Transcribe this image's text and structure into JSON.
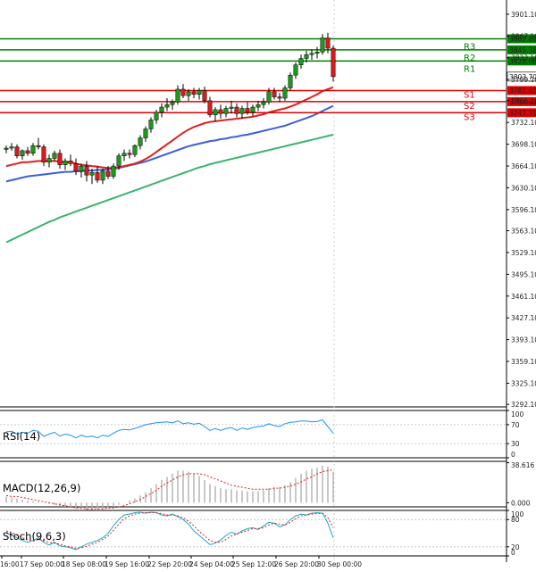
{
  "chart_data": {
    "type": "candlestick",
    "y_ticks": [
      3901.1,
      3867.1,
      3833.1,
      3799.1,
      3766.1,
      3732.1,
      3698.1,
      3664.1,
      3630.1,
      3596.1,
      3563.1,
      3529.1,
      3495.1,
      3461.1,
      3427.1,
      3393.1,
      3359.1,
      3325.1,
      3292.1
    ],
    "ylim": [
      3288.1,
      3912.1
    ],
    "current_price": "3803.70",
    "x_ticks": [
      "16:00",
      "17 Sep 00:00",
      "18 Sep 08:00",
      "19 Sep 16:00",
      "22 Sep 20:00",
      "24 Sep 04:00",
      "25 Sep 12:00",
      "26 Sep 20:00",
      "30 Sep 00:00"
    ],
    "levels": [
      {
        "name": "R3",
        "value": 3862.69,
        "label": "3862.69",
        "color": "#008000"
      },
      {
        "name": "R2",
        "value": 3845.38,
        "label": "3845.38",
        "color": "#008000"
      },
      {
        "name": "R1",
        "value": 3828.08,
        "label": "3828.08",
        "color": "#008000"
      },
      {
        "name": "S1",
        "value": 3781.92,
        "label": "3781.92",
        "color": "#e00000"
      },
      {
        "name": "S2",
        "value": 3764.62,
        "label": "3764.62",
        "color": "#e00000"
      },
      {
        "name": "S3",
        "value": 3747.31,
        "label": "3747.31",
        "color": "#e00000"
      }
    ],
    "candles": [
      [
        3690,
        3696,
        3684,
        3692
      ],
      [
        3692,
        3700,
        3688,
        3694
      ],
      [
        3694,
        3698,
        3676,
        3680
      ],
      [
        3680,
        3690,
        3674,
        3688
      ],
      [
        3688,
        3694,
        3680,
        3684
      ],
      [
        3684,
        3700,
        3680,
        3696
      ],
      [
        3696,
        3708,
        3690,
        3694
      ],
      [
        3694,
        3698,
        3664,
        3670
      ],
      [
        3670,
        3682,
        3662,
        3676
      ],
      [
        3676,
        3688,
        3672,
        3684
      ],
      [
        3684,
        3690,
        3660,
        3666
      ],
      [
        3666,
        3676,
        3658,
        3672
      ],
      [
        3672,
        3682,
        3664,
        3668
      ],
      [
        3668,
        3676,
        3650,
        3656
      ],
      [
        3656,
        3668,
        3646,
        3664
      ],
      [
        3664,
        3672,
        3640,
        3650
      ],
      [
        3650,
        3660,
        3636,
        3654
      ],
      [
        3654,
        3664,
        3638,
        3642
      ],
      [
        3642,
        3660,
        3636,
        3656
      ],
      [
        3656,
        3664,
        3644,
        3648
      ],
      [
        3648,
        3668,
        3644,
        3664
      ],
      [
        3664,
        3684,
        3658,
        3680
      ],
      [
        3680,
        3690,
        3672,
        3684
      ],
      [
        3684,
        3690,
        3676,
        3682
      ],
      [
        3682,
        3698,
        3678,
        3696
      ],
      [
        3696,
        3712,
        3690,
        3708
      ],
      [
        3708,
        3726,
        3702,
        3722
      ],
      [
        3722,
        3740,
        3716,
        3736
      ],
      [
        3736,
        3752,
        3730,
        3748
      ],
      [
        3748,
        3762,
        3740,
        3756
      ],
      [
        3756,
        3770,
        3750,
        3760
      ],
      [
        3760,
        3768,
        3752,
        3764
      ],
      [
        3764,
        3790,
        3760,
        3784
      ],
      [
        3784,
        3792,
        3770,
        3774
      ],
      [
        3774,
        3784,
        3766,
        3780
      ],
      [
        3780,
        3786,
        3770,
        3776
      ],
      [
        3776,
        3786,
        3768,
        3782
      ],
      [
        3782,
        3788,
        3762,
        3766
      ],
      [
        3766,
        3772,
        3740,
        3744
      ],
      [
        3744,
        3756,
        3734,
        3752
      ],
      [
        3752,
        3760,
        3738,
        3746
      ],
      [
        3746,
        3758,
        3740,
        3754
      ],
      [
        3754,
        3766,
        3746,
        3756
      ],
      [
        3756,
        3762,
        3740,
        3746
      ],
      [
        3746,
        3758,
        3738,
        3754
      ],
      [
        3754,
        3764,
        3744,
        3748
      ],
      [
        3748,
        3760,
        3742,
        3756
      ],
      [
        3756,
        3766,
        3750,
        3760
      ],
      [
        3760,
        3770,
        3754,
        3764
      ],
      [
        3764,
        3786,
        3760,
        3780
      ],
      [
        3780,
        3786,
        3768,
        3772
      ],
      [
        3772,
        3778,
        3764,
        3770
      ],
      [
        3770,
        3790,
        3766,
        3786
      ],
      [
        3786,
        3810,
        3782,
        3806
      ],
      [
        3806,
        3826,
        3800,
        3822
      ],
      [
        3822,
        3838,
        3816,
        3832
      ],
      [
        3832,
        3844,
        3826,
        3838
      ],
      [
        3838,
        3846,
        3830,
        3840
      ],
      [
        3840,
        3850,
        3832,
        3842
      ],
      [
        3842,
        3870,
        3838,
        3864
      ],
      [
        3864,
        3872,
        3840,
        3848
      ],
      [
        3848,
        3852,
        3796,
        3803.7
      ]
    ],
    "ma_fast": [
      3664,
      3666,
      3668,
      3670,
      3670,
      3671,
      3672,
      3672,
      3672,
      3672,
      3671,
      3670,
      3670,
      3668,
      3666,
      3665,
      3664,
      3663,
      3662,
      3661,
      3661,
      3662,
      3664,
      3666,
      3668,
      3671,
      3675,
      3680,
      3686,
      3692,
      3698,
      3704,
      3710,
      3716,
      3721,
      3725,
      3728,
      3731,
      3733,
      3734,
      3735,
      3736,
      3737,
      3738,
      3739,
      3740,
      3741,
      3743,
      3745,
      3748,
      3750,
      3752,
      3754,
      3757,
      3760,
      3764,
      3768,
      3772,
      3776,
      3781,
      3784,
      3787
    ],
    "ma_mid": [
      3640,
      3642,
      3644,
      3646,
      3648,
      3649,
      3650,
      3651,
      3652,
      3653,
      3654,
      3655,
      3655,
      3656,
      3656,
      3657,
      3657,
      3658,
      3658,
      3659,
      3660,
      3661,
      3663,
      3665,
      3667,
      3669,
      3671,
      3674,
      3677,
      3680,
      3683,
      3686,
      3689,
      3692,
      3695,
      3697,
      3699,
      3701,
      3703,
      3704,
      3706,
      3707,
      3709,
      3710,
      3712,
      3713,
      3715,
      3717,
      3719,
      3721,
      3723,
      3725,
      3727,
      3730,
      3733,
      3736,
      3739,
      3742,
      3746,
      3750,
      3754,
      3758
    ],
    "ma_slow": [
      3545,
      3549,
      3553,
      3557,
      3561,
      3565,
      3569,
      3573,
      3577,
      3580,
      3584,
      3587,
      3590,
      3593,
      3596,
      3599,
      3602,
      3605,
      3608,
      3611,
      3614,
      3617,
      3620,
      3623,
      3626,
      3629,
      3632,
      3635,
      3638,
      3641,
      3644,
      3647,
      3650,
      3653,
      3656,
      3659,
      3662,
      3664,
      3667,
      3669,
      3671,
      3673,
      3675,
      3677,
      3679,
      3681,
      3683,
      3685,
      3687,
      3689,
      3691,
      3693,
      3695,
      3697,
      3699,
      3701,
      3703,
      3705,
      3707,
      3709,
      3711,
      3713
    ],
    "rsi": {
      "title": "RSI(14)",
      "ticks": [
        "100",
        "70",
        "30",
        "0"
      ],
      "ylim": [
        0,
        100
      ],
      "values": [
        55,
        56,
        50,
        54,
        52,
        58,
        56,
        45,
        50,
        54,
        46,
        50,
        48,
        42,
        48,
        44,
        46,
        42,
        48,
        45,
        52,
        58,
        60,
        59,
        62,
        66,
        70,
        72,
        74,
        75,
        76,
        74,
        78,
        72,
        74,
        71,
        73,
        66,
        58,
        62,
        58,
        62,
        64,
        58,
        63,
        60,
        64,
        66,
        67,
        72,
        68,
        66,
        72,
        75,
        76,
        78,
        78,
        76,
        77,
        80,
        66,
        52
      ]
    },
    "macd": {
      "title": "MACD(12,26,9)",
      "ticks": [
        "38.616",
        "0.000"
      ],
      "ylim": [
        -4,
        40
      ],
      "hist": [
        6,
        5,
        4,
        3,
        2,
        1.5,
        1,
        0,
        -1,
        -2,
        -3,
        -4,
        -5,
        -6,
        -6,
        -7,
        -7,
        -6,
        -6,
        -5,
        -4,
        -2,
        0,
        2,
        4,
        7,
        10,
        14,
        18,
        22,
        25,
        28,
        31,
        31,
        30,
        28,
        26,
        22,
        18,
        16,
        14,
        13,
        13,
        12,
        12,
        11,
        11,
        11,
        12,
        14,
        15,
        15,
        17,
        20,
        24,
        28,
        31,
        33,
        34,
        36,
        35,
        30
      ],
      "signal": [
        7,
        6,
        6,
        5,
        4,
        3,
        2,
        1,
        0,
        -1,
        -2,
        -3,
        -4,
        -5,
        -5,
        -6,
        -6,
        -6,
        -6,
        -5,
        -5,
        -4,
        -3,
        -1,
        1,
        3,
        6,
        9,
        12,
        16,
        19,
        22,
        25,
        27,
        28,
        28,
        28,
        27,
        25,
        23,
        21,
        19,
        17,
        16,
        15,
        14,
        13,
        13,
        13,
        13,
        14,
        14,
        15,
        16,
        18,
        20,
        23,
        25,
        28,
        30,
        31,
        32
      ]
    },
    "stoch": {
      "title": "Stoch(9,6,3)",
      "ticks": [
        "100",
        "80",
        "20",
        "0"
      ],
      "ylim": [
        0,
        100
      ],
      "k": [
        50,
        46,
        40,
        34,
        30,
        34,
        40,
        30,
        24,
        30,
        22,
        20,
        18,
        14,
        20,
        26,
        30,
        34,
        40,
        50,
        66,
        80,
        90,
        92,
        95,
        96,
        94,
        96,
        95,
        90,
        88,
        92,
        86,
        80,
        70,
        55,
        45,
        35,
        25,
        28,
        35,
        45,
        52,
        48,
        55,
        60,
        62,
        58,
        66,
        74,
        72,
        64,
        68,
        80,
        88,
        92,
        90,
        94,
        95,
        94,
        72,
        40
      ],
      "d": [
        55,
        52,
        46,
        40,
        35,
        33,
        36,
        34,
        30,
        28,
        26,
        22,
        20,
        17,
        18,
        21,
        26,
        30,
        36,
        44,
        56,
        70,
        82,
        88,
        92,
        94,
        95,
        95,
        95,
        93,
        90,
        90,
        88,
        84,
        76,
        66,
        54,
        44,
        34,
        30,
        30,
        36,
        44,
        48,
        52,
        56,
        60,
        60,
        62,
        68,
        72,
        70,
        68,
        74,
        82,
        88,
        90,
        92,
        93,
        94,
        84,
        62
      ]
    }
  }
}
